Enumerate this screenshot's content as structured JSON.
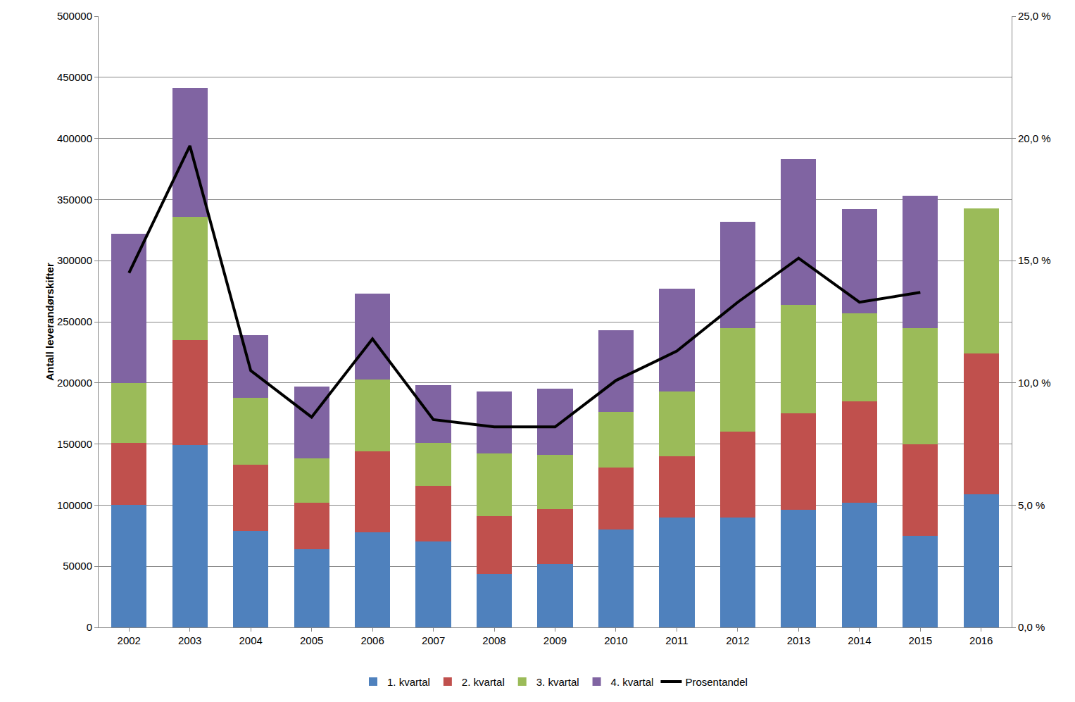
{
  "chart_data": {
    "type": "bar",
    "stacked": true,
    "y_label": "Antall leverandørskifter",
    "categories": [
      "2002",
      "2003",
      "2004",
      "2005",
      "2006",
      "2007",
      "2008",
      "2009",
      "2010",
      "2011",
      "2012",
      "2013",
      "2014",
      "2015",
      "2016"
    ],
    "series": [
      {
        "name": "1. kvartal",
        "color": "#4F81BD",
        "type": "bar",
        "values": [
          100000,
          149000,
          79000,
          64000,
          78000,
          70000,
          44000,
          52000,
          80000,
          90000,
          90000,
          96000,
          102000,
          75000,
          109000
        ]
      },
      {
        "name": "2. kvartal",
        "color": "#C0504D",
        "type": "bar",
        "values": [
          51000,
          86000,
          54000,
          38000,
          66000,
          46000,
          47000,
          45000,
          51000,
          50000,
          70000,
          79000,
          83000,
          75000,
          115000
        ]
      },
      {
        "name": "3. kvartal",
        "color": "#9BBB59",
        "type": "bar",
        "values": [
          49000,
          101000,
          55000,
          36000,
          59000,
          35000,
          51000,
          44000,
          45000,
          53000,
          85000,
          89000,
          72000,
          95000,
          119000
        ]
      },
      {
        "name": "4. kvartal",
        "color": "#8064A2",
        "type": "bar",
        "values": [
          122000,
          105000,
          51000,
          59000,
          70000,
          47000,
          51000,
          54000,
          67000,
          84000,
          87000,
          119000,
          85000,
          108000,
          null
        ]
      },
      {
        "name": "Prosentandel",
        "color": "#000000",
        "type": "line",
        "axis": "y2",
        "values": [
          14.5,
          19.7,
          10.5,
          8.6,
          11.8,
          8.5,
          8.2,
          8.2,
          10.1,
          11.3,
          13.3,
          15.1,
          13.3,
          13.7,
          null
        ]
      }
    ],
    "ylim": [
      0,
      500000
    ],
    "yticks": [
      0,
      50000,
      100000,
      150000,
      200000,
      250000,
      300000,
      350000,
      400000,
      450000,
      500000
    ],
    "y2lim": [
      0,
      25
    ],
    "y2ticks": [
      {
        "value": 0,
        "label": "0,0 %"
      },
      {
        "value": 5,
        "label": "5,0 %"
      },
      {
        "value": 10,
        "label": "10,0 %"
      },
      {
        "value": 15,
        "label": "15,0 %"
      },
      {
        "value": 20,
        "label": "20,0 %"
      },
      {
        "value": 25,
        "label": "25,0 %"
      }
    ],
    "grid": true,
    "legend": "bottom"
  }
}
